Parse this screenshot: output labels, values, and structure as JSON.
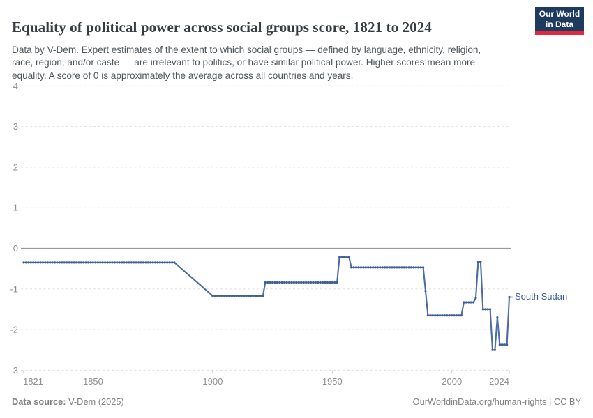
{
  "header": {
    "title": "Equality of political power across social groups score, 1821 to 2024",
    "logo": {
      "line1": "Our World",
      "line2": "in Data",
      "bg_color": "#1d3a5f",
      "accent_color": "#e0293e"
    }
  },
  "subtitle": "Data by V-Dem. Expert estimates of the extent to which social groups — defined by language, ethnicity, religion,\nrace, region, and/or caste — are irrelevant to politics, or have similar political power. Higher scores mean more\nequality. A score of 0 is approximately the average across all countries and years.",
  "chart_data": {
    "type": "line",
    "title": "Equality of political power across social groups score, 1821 to 2024",
    "xlabel": "",
    "ylabel": "",
    "xlim": [
      1821,
      2024
    ],
    "ylim": [
      -3,
      4
    ],
    "xticks": [
      1821,
      1850,
      1900,
      1950,
      2000,
      2024
    ],
    "yticks": [
      4,
      3,
      2,
      1,
      0,
      -1,
      -2,
      -3
    ],
    "grid": "horizontal-dashed",
    "zero_line": "solid",
    "legend": "entity-label-at-line-end",
    "colors": {
      "line": "#4c6ba5",
      "dot": "#3f5f97",
      "grid": "#e0e0e0",
      "zero_line": "#9b9b9b",
      "tick": "#c9c9c9",
      "axis_text": "#8f8f8f"
    },
    "series": [
      {
        "name": "South Sudan",
        "color": "#4c6ba5",
        "note": "value runs: [first_year, last_year, value]; one data point per year, shown as dots",
        "runs": [
          [
            1821,
            1884,
            -0.35
          ],
          [
            1900,
            1921,
            -1.17
          ],
          [
            1922,
            1952,
            -0.84
          ],
          [
            1953,
            1957,
            -0.22
          ],
          [
            1958,
            1988,
            -0.47
          ],
          [
            1989,
            1989,
            -1.05
          ],
          [
            1990,
            2004,
            -1.65
          ],
          [
            2005,
            2009,
            -1.33
          ],
          [
            2010,
            2010,
            -1.22
          ],
          [
            2011,
            2012,
            -0.33
          ],
          [
            2013,
            2016,
            -1.5
          ],
          [
            2017,
            2018,
            -2.5
          ],
          [
            2019,
            2019,
            -1.7
          ],
          [
            2020,
            2023,
            -2.37
          ],
          [
            2024,
            2024,
            -1.2
          ]
        ],
        "gap_interpolated": [
          [
            1884,
            1900
          ]
        ]
      }
    ],
    "entity_label": "South Sudan"
  },
  "footer": {
    "source_label": "Data source:",
    "source_value": " V-Dem (2025)",
    "credit_link": "OurWorldinData.org/human-rights",
    "credit_license": " | CC BY"
  }
}
